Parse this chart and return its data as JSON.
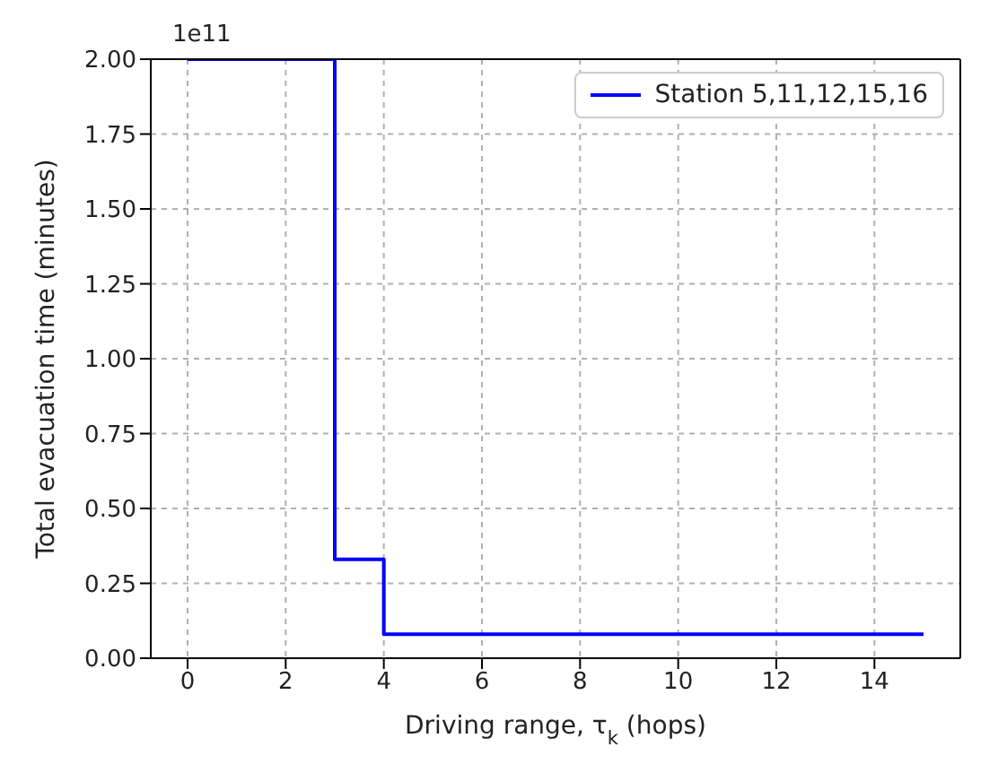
{
  "chart_data": {
    "type": "step",
    "xlabel": "Driving range, τ$_{k}$ (hops)",
    "ylabel": "Total evacuation time (minutes)",
    "annotations": [
      "1e11"
    ],
    "x": [
      0,
      1,
      2,
      3,
      4,
      5,
      6,
      7,
      8,
      9,
      10,
      11,
      12,
      13,
      14,
      15
    ],
    "series": [
      {
        "name": "Station 5,11,12,15,16",
        "color": "#0000ff",
        "values": [
          2.0,
          2.0,
          2.0,
          0.33,
          0.08,
          0.08,
          0.08,
          0.08,
          0.08,
          0.08,
          0.08,
          0.08,
          0.08,
          0.08,
          0.08,
          0.08
        ]
      }
    ],
    "xlim": [
      -0.75,
      15.75
    ],
    "xticks": [
      0,
      2,
      4,
      6,
      8,
      10,
      12,
      14
    ],
    "ylim": [
      0,
      2.0
    ],
    "yticks": [
      {
        "value": 0,
        "label": "0.00"
      },
      {
        "value": 0.25,
        "label": "0.25"
      },
      {
        "value": 0.5,
        "label": "0.50"
      },
      {
        "value": 0.75,
        "label": "0.75"
      },
      {
        "value": 1.0,
        "label": "1.00"
      },
      {
        "value": 1.25,
        "label": "1.25"
      },
      {
        "value": 1.5,
        "label": "1.50"
      },
      {
        "value": 1.75,
        "label": "1.75"
      },
      {
        "value": 2.0,
        "label": "2.00"
      }
    ],
    "grid": true,
    "line_style": "solid",
    "marker": "none",
    "legend": "top right"
  }
}
